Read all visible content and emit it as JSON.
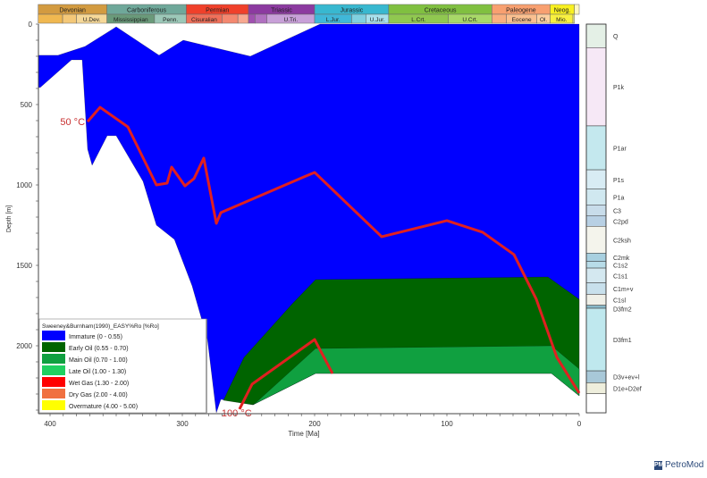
{
  "chart_data": {
    "type": "area",
    "xlabel": "Time [Ma]",
    "ylabel": "Depth [m]",
    "xlim": [
      409,
      0
    ],
    "ylim": [
      0,
      2417
    ],
    "x_reversed": true,
    "y_reversed": true,
    "xticks": [
      400,
      300,
      200,
      100,
      0
    ],
    "yticks": [
      0,
      500,
      1000,
      1500,
      2000
    ],
    "grid": false,
    "legend_position": "bottom-left",
    "legend": {
      "title": "Sweeney&Burnham(1990)_EASY%Ro [%Ro]",
      "items": [
        {
          "label": "Immature (0 - 0.55)",
          "color": "#0000ff"
        },
        {
          "label": "Early Oil (0.55 - 0.70)",
          "color": "#006400"
        },
        {
          "label": "Main Oil (0.70 - 1.00)",
          "color": "#10a040"
        },
        {
          "label": "Late Oil (1.00 - 1.30)",
          "color": "#20d060"
        },
        {
          "label": "Wet Gas (1.30 - 2.00)",
          "color": "#ff0000"
        },
        {
          "label": "Dry Gas (2.00 - 4.00)",
          "color": "#f07040"
        },
        {
          "label": "Overmature (4.00 - 5.00)",
          "color": "#ffff00"
        }
      ]
    },
    "maturity_zones": [
      {
        "zone": "Immature (0 - 0.55)",
        "color": "#0000ff",
        "points": [
          [
            408.8,
            194
          ],
          [
            394,
            194
          ],
          [
            373.6,
            139
          ],
          [
            350,
            17
          ],
          [
            317.6,
            194
          ],
          [
            299.3,
            100
          ],
          [
            248.6,
            200
          ],
          [
            204.7,
            33
          ],
          [
            195.9,
            0
          ],
          [
            0,
            0
          ],
          [
            0,
            2311
          ],
          [
            20.9,
            2172
          ],
          [
            199.3,
            2172
          ],
          [
            246.6,
            2367
          ],
          [
            270.9,
            2333
          ],
          [
            274.3,
            2417
          ],
          [
            281,
            1961
          ],
          [
            292.6,
            1628
          ],
          [
            306,
            1339
          ],
          [
            319.6,
            1250
          ],
          [
            329.7,
            978
          ],
          [
            350,
            694
          ],
          [
            356.8,
            694
          ],
          [
            368.2,
            878
          ],
          [
            371.6,
            778
          ],
          [
            375.7,
            222
          ],
          [
            383.8,
            222
          ],
          [
            407.4,
            394
          ],
          [
            408.8,
            394
          ]
        ]
      },
      {
        "zone": "Early Oil (0.55 - 0.70)",
        "color": "#006400",
        "points": [
          [
            268.9,
            2339
          ],
          [
            264.2,
            2256
          ],
          [
            253.4,
            2072
          ],
          [
            216.9,
            1739
          ],
          [
            199.3,
            1589
          ],
          [
            23.6,
            1572
          ],
          [
            0,
            1711
          ],
          [
            0,
            2311
          ],
          [
            20.9,
            2172
          ],
          [
            199.3,
            2172
          ],
          [
            246.6,
            2367
          ]
        ]
      },
      {
        "zone": "Main Oil (0.70 - 1.00)",
        "color": "#10a040",
        "points": [
          [
            243.9,
            2350
          ],
          [
            199.3,
            2017
          ],
          [
            20.9,
            2000
          ],
          [
            0,
            2144
          ],
          [
            0,
            2311
          ],
          [
            20.9,
            2172
          ],
          [
            199.3,
            2172
          ],
          [
            246.6,
            2367
          ]
        ]
      }
    ],
    "isotherms": [
      {
        "label": "50 °C",
        "color": "#e02020",
        "points": [
          [
            371.6,
            606
          ],
          [
            362.2,
            517
          ],
          [
            341.2,
            639
          ],
          [
            319.6,
            1000
          ],
          [
            311.5,
            989
          ],
          [
            308.1,
            889
          ],
          [
            298,
            1006
          ],
          [
            291.2,
            961
          ],
          [
            283.8,
            833
          ],
          [
            274.3,
            1239
          ],
          [
            270.9,
            1172
          ],
          [
            208.1,
            950
          ],
          [
            200,
            922
          ],
          [
            149.3,
            1322
          ],
          [
            100,
            1222
          ],
          [
            73,
            1294
          ],
          [
            49.3,
            1433
          ],
          [
            32.4,
            1711
          ],
          [
            16.9,
            2072
          ],
          [
            0,
            2294
          ]
        ]
      },
      {
        "label": "100 °C",
        "color": "#e02020",
        "points": [
          [
            256.8,
            2394
          ],
          [
            247.3,
            2239
          ],
          [
            200,
            1961
          ],
          [
            186.5,
            2172
          ]
        ]
      }
    ],
    "timescale": {
      "periods": [
        {
          "name": "Devonian",
          "from": 409,
          "to": 357,
          "color": "#d39b40"
        },
        {
          "name": "Carboniferous",
          "from": 357,
          "to": 297,
          "color": "#6fa89a"
        },
        {
          "name": "Permian",
          "from": 297,
          "to": 250,
          "color": "#f0402a"
        },
        {
          "name": "Triassic",
          "from": 250,
          "to": 200,
          "color": "#8c3aa0"
        },
        {
          "name": "Jurassic",
          "from": 200,
          "to": 144,
          "color": "#38b8d0"
        },
        {
          "name": "Cretaceous",
          "from": 144,
          "to": 66,
          "color": "#80c040"
        },
        {
          "name": "Paleogene",
          "from": 66,
          "to": 22,
          "color": "#f8a070"
        },
        {
          "name": "Neog.",
          "from": 22,
          "to": 3.6,
          "color": "#f8f020"
        },
        {
          "name": "",
          "from": 3.6,
          "to": 0,
          "color": "#fff8c0"
        }
      ],
      "epochs": [
        {
          "name": "",
          "from": 409,
          "to": 390.5,
          "color": "#f0b850"
        },
        {
          "name": "",
          "from": 390.5,
          "to": 380,
          "color": "#f4c878"
        },
        {
          "name": "U.Dev.",
          "from": 380,
          "to": 357,
          "color": "#f6d898"
        },
        {
          "name": "Mississippian",
          "from": 357,
          "to": 321,
          "color": "#6a9a7a"
        },
        {
          "name": "Penn.",
          "from": 321,
          "to": 297,
          "color": "#9cc8b8"
        },
        {
          "name": "Cisuralian",
          "from": 297,
          "to": 270,
          "color": "#f0705a"
        },
        {
          "name": "",
          "from": 270,
          "to": 258,
          "color": "#f48870"
        },
        {
          "name": "",
          "from": 258,
          "to": 250,
          "color": "#f8a890"
        },
        {
          "name": "",
          "from": 250,
          "to": 245,
          "color": "#a050b0"
        },
        {
          "name": "",
          "from": 245,
          "to": 236,
          "color": "#b070c0"
        },
        {
          "name": "U.Tri.",
          "from": 236,
          "to": 200,
          "color": "#c8a0d8"
        },
        {
          "name": "L.Jur.",
          "from": 200,
          "to": 172,
          "color": "#40b8d8"
        },
        {
          "name": "",
          "from": 172,
          "to": 161,
          "color": "#80d0e0"
        },
        {
          "name": "U.Jur.",
          "from": 161,
          "to": 144,
          "color": "#a8e0ec"
        },
        {
          "name": "L.Crt.",
          "from": 144,
          "to": 99,
          "color": "#90c850"
        },
        {
          "name": "U.Crt.",
          "from": 99,
          "to": 66,
          "color": "#a8d868"
        },
        {
          "name": "",
          "from": 66,
          "to": 55,
          "color": "#f8b080"
        },
        {
          "name": "Eocene",
          "from": 55,
          "to": 32,
          "color": "#fac090"
        },
        {
          "name": "Ol.",
          "from": 32,
          "to": 22,
          "color": "#fcd0a0"
        },
        {
          "name": "Mio.",
          "from": 22,
          "to": 4.7,
          "color": "#f8f040"
        },
        {
          "name": "",
          "from": 4.7,
          "to": 3.6,
          "color": "#fcf890"
        }
      ]
    },
    "lithology_column": [
      {
        "name": "Q",
        "top": 0,
        "base": 146,
        "color": "#e4f0e6"
      },
      {
        "name": "P1k",
        "top": 146,
        "base": 633,
        "color": "#f6e8f6"
      },
      {
        "name": "P1ar",
        "top": 633,
        "base": 906,
        "color": "#c4e8ee"
      },
      {
        "name": "P1s",
        "top": 906,
        "base": 1026,
        "color": "#d8ecf4"
      },
      {
        "name": "P1a",
        "top": 1026,
        "base": 1124,
        "color": "#d0e8f0"
      },
      {
        "name": "C3",
        "top": 1124,
        "base": 1193,
        "color": "#c8dcea"
      },
      {
        "name": "C2pd",
        "top": 1193,
        "base": 1257,
        "color": "#b8d0e4"
      },
      {
        "name": "C2ksh",
        "top": 1257,
        "base": 1424,
        "color": "#f4f4ec"
      },
      {
        "name": "C2mk",
        "top": 1424,
        "base": 1476,
        "color": "#a8d0e0"
      },
      {
        "name": "C1s2",
        "top": 1476,
        "base": 1517,
        "color": "#b8dce8"
      },
      {
        "name": "C1s1",
        "top": 1517,
        "base": 1609,
        "color": "#d4e8f0"
      },
      {
        "name": "C1m+v",
        "top": 1609,
        "base": 1680,
        "color": "#c8e0ec"
      },
      {
        "name": "C1sl",
        "top": 1680,
        "base": 1748,
        "color": "#f0f0e8"
      },
      {
        "name": "D3fm2",
        "top": 1748,
        "base": 1767,
        "color": "#88b8c8"
      },
      {
        "name": "D3fm1",
        "top": 1767,
        "base": 2156,
        "color": "#bfe8ee"
      },
      {
        "name": "D3v+ev+l",
        "top": 2156,
        "base": 2230,
        "color": "#a8c8d8"
      },
      {
        "name": "D1e+D2ef",
        "top": 2230,
        "base": 2298,
        "color": "#eeeedc"
      },
      {
        "name": "",
        "top": 2298,
        "base": 2417,
        "color": "#ffffff"
      }
    ]
  },
  "branding": {
    "logo_text": "PetroMod",
    "logo_mark": "PM"
  }
}
